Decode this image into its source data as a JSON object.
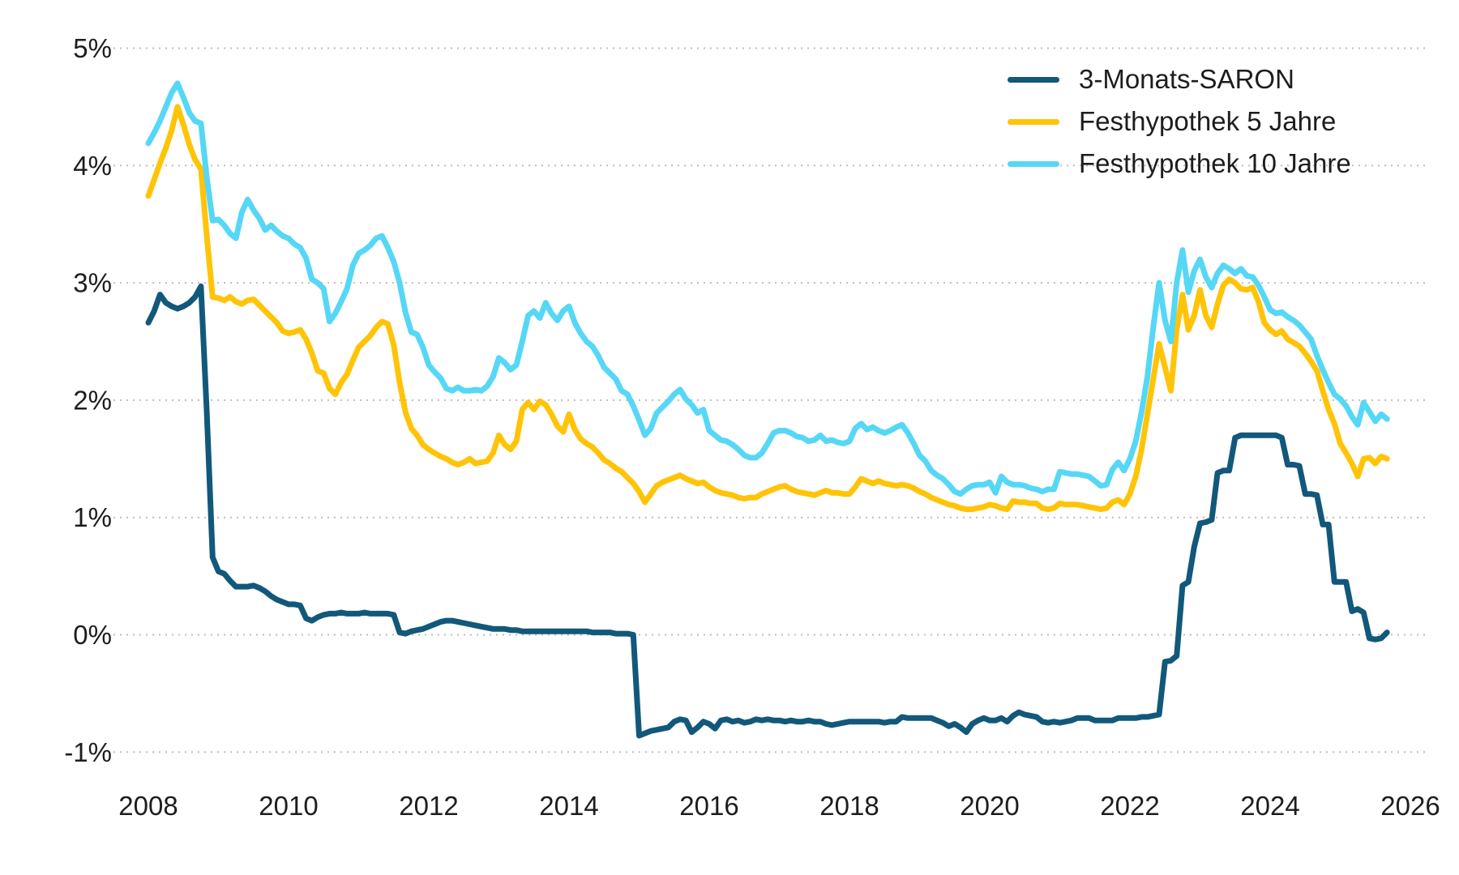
{
  "chart_data": {
    "type": "line",
    "title": "",
    "x_axis": {
      "tick_labels": [
        "2008",
        "2010",
        "2012",
        "2014",
        "2016",
        "2018",
        "2020",
        "2022",
        "2024",
        "2026"
      ],
      "tick_years": [
        2008,
        2010,
        2012,
        2014,
        2016,
        2018,
        2020,
        2022,
        2024,
        2026
      ],
      "range": [
        2008,
        2026.3
      ]
    },
    "y_axis": {
      "tick_labels": [
        "5%",
        "4%",
        "3%",
        "2%",
        "1%",
        "0%",
        "-1%"
      ],
      "tick_values": [
        5,
        4,
        3,
        2,
        1,
        0,
        -1
      ],
      "unit": "%",
      "range": [
        -1.4,
        5.3
      ],
      "gridlines": "dotted-horizontal"
    },
    "legend_position": "top-right",
    "x_start_year": 2008,
    "x_start_month": 1,
    "x_months_per_step": 1,
    "x_end_year": 2025,
    "x_end_month": 9,
    "series": [
      {
        "name": "3-Monats-SARON",
        "color": "#12587B",
        "values": [
          2.66,
          2.76,
          2.9,
          2.83,
          2.8,
          2.78,
          2.8,
          2.83,
          2.88,
          2.97,
          1.9,
          0.66,
          0.54,
          0.52,
          0.46,
          0.41,
          0.41,
          0.41,
          0.42,
          0.4,
          0.37,
          0.33,
          0.3,
          0.28,
          0.26,
          0.26,
          0.25,
          0.14,
          0.12,
          0.15,
          0.17,
          0.18,
          0.18,
          0.19,
          0.18,
          0.18,
          0.18,
          0.19,
          0.18,
          0.18,
          0.18,
          0.18,
          0.17,
          0.02,
          0.01,
          0.03,
          0.04,
          0.05,
          0.07,
          0.09,
          0.11,
          0.12,
          0.12,
          0.11,
          0.1,
          0.09,
          0.08,
          0.07,
          0.06,
          0.05,
          0.05,
          0.05,
          0.04,
          0.04,
          0.03,
          0.03,
          0.03,
          0.03,
          0.03,
          0.03,
          0.03,
          0.03,
          0.03,
          0.03,
          0.03,
          0.03,
          0.02,
          0.02,
          0.02,
          0.02,
          0.01,
          0.01,
          0.01,
          0.0,
          -0.86,
          -0.84,
          -0.82,
          -0.81,
          -0.8,
          -0.79,
          -0.74,
          -0.72,
          -0.73,
          -0.83,
          -0.79,
          -0.74,
          -0.76,
          -0.8,
          -0.73,
          -0.72,
          -0.74,
          -0.73,
          -0.75,
          -0.74,
          -0.72,
          -0.73,
          -0.72,
          -0.73,
          -0.73,
          -0.74,
          -0.73,
          -0.74,
          -0.74,
          -0.73,
          -0.74,
          -0.74,
          -0.76,
          -0.77,
          -0.76,
          -0.75,
          -0.74,
          -0.74,
          -0.74,
          -0.74,
          -0.74,
          -0.74,
          -0.75,
          -0.74,
          -0.74,
          -0.7,
          -0.71,
          -0.71,
          -0.71,
          -0.71,
          -0.71,
          -0.73,
          -0.75,
          -0.78,
          -0.76,
          -0.79,
          -0.83,
          -0.76,
          -0.73,
          -0.71,
          -0.73,
          -0.73,
          -0.71,
          -0.74,
          -0.69,
          -0.66,
          -0.68,
          -0.69,
          -0.7,
          -0.74,
          -0.75,
          -0.74,
          -0.75,
          -0.74,
          -0.73,
          -0.71,
          -0.71,
          -0.71,
          -0.73,
          -0.73,
          -0.73,
          -0.73,
          -0.71,
          -0.71,
          -0.71,
          -0.71,
          -0.7,
          -0.7,
          -0.69,
          -0.68,
          -0.23,
          -0.22,
          -0.18,
          0.42,
          0.45,
          0.75,
          0.95,
          0.96,
          0.98,
          1.38,
          1.4,
          1.4,
          1.68,
          1.7,
          1.7,
          1.7,
          1.7,
          1.7,
          1.7,
          1.7,
          1.68,
          1.45,
          1.45,
          1.44,
          1.2,
          1.2,
          1.19,
          0.94,
          0.94,
          0.45,
          0.45,
          0.45,
          0.2,
          0.22,
          0.19,
          -0.03,
          -0.04,
          -0.03,
          0.02
        ]
      },
      {
        "name": "Festhypothek 5 Jahre",
        "color": "#FFC408",
        "values": [
          3.74,
          3.88,
          4.02,
          4.15,
          4.3,
          4.5,
          4.35,
          4.18,
          4.05,
          3.97,
          3.4,
          2.88,
          2.87,
          2.85,
          2.88,
          2.84,
          2.82,
          2.85,
          2.86,
          2.81,
          2.76,
          2.71,
          2.66,
          2.59,
          2.57,
          2.58,
          2.6,
          2.52,
          2.4,
          2.25,
          2.23,
          2.1,
          2.05,
          2.15,
          2.22,
          2.34,
          2.45,
          2.5,
          2.55,
          2.62,
          2.67,
          2.65,
          2.47,
          2.15,
          1.9,
          1.76,
          1.7,
          1.62,
          1.58,
          1.55,
          1.52,
          1.5,
          1.47,
          1.45,
          1.47,
          1.5,
          1.46,
          1.47,
          1.48,
          1.55,
          1.7,
          1.62,
          1.58,
          1.65,
          1.92,
          1.98,
          1.92,
          1.99,
          1.96,
          1.88,
          1.78,
          1.73,
          1.88,
          1.75,
          1.67,
          1.63,
          1.6,
          1.55,
          1.49,
          1.46,
          1.42,
          1.39,
          1.34,
          1.29,
          1.22,
          1.13,
          1.2,
          1.27,
          1.3,
          1.32,
          1.34,
          1.36,
          1.33,
          1.31,
          1.29,
          1.3,
          1.26,
          1.23,
          1.21,
          1.2,
          1.19,
          1.17,
          1.16,
          1.17,
          1.17,
          1.2,
          1.22,
          1.24,
          1.26,
          1.27,
          1.24,
          1.22,
          1.21,
          1.2,
          1.19,
          1.21,
          1.23,
          1.21,
          1.21,
          1.2,
          1.2,
          1.26,
          1.33,
          1.31,
          1.29,
          1.31,
          1.29,
          1.28,
          1.27,
          1.28,
          1.27,
          1.25,
          1.22,
          1.2,
          1.17,
          1.15,
          1.13,
          1.11,
          1.1,
          1.08,
          1.07,
          1.07,
          1.08,
          1.09,
          1.11,
          1.1,
          1.08,
          1.07,
          1.14,
          1.13,
          1.13,
          1.12,
          1.12,
          1.08,
          1.07,
          1.08,
          1.12,
          1.11,
          1.11,
          1.11,
          1.1,
          1.09,
          1.08,
          1.07,
          1.08,
          1.13,
          1.15,
          1.11,
          1.2,
          1.35,
          1.58,
          1.88,
          2.18,
          2.48,
          2.28,
          2.08,
          2.6,
          2.9,
          2.6,
          2.72,
          2.94,
          2.72,
          2.62,
          2.82,
          2.98,
          3.03,
          3.0,
          2.95,
          2.94,
          2.96,
          2.84,
          2.66,
          2.6,
          2.56,
          2.59,
          2.52,
          2.49,
          2.46,
          2.4,
          2.33,
          2.25,
          2.08,
          1.92,
          1.8,
          1.63,
          1.55,
          1.46,
          1.35,
          1.5,
          1.51,
          1.46,
          1.52,
          1.5
        ]
      },
      {
        "name": "Festhypothek 10 Jahre",
        "color": "#56D7F6",
        "values": [
          4.19,
          4.28,
          4.38,
          4.5,
          4.62,
          4.7,
          4.58,
          4.45,
          4.38,
          4.36,
          3.9,
          3.53,
          3.54,
          3.49,
          3.42,
          3.38,
          3.6,
          3.71,
          3.62,
          3.55,
          3.45,
          3.49,
          3.44,
          3.4,
          3.38,
          3.33,
          3.3,
          3.21,
          3.03,
          3.0,
          2.95,
          2.67,
          2.74,
          2.84,
          2.95,
          3.15,
          3.25,
          3.28,
          3.32,
          3.38,
          3.4,
          3.3,
          3.18,
          3.0,
          2.75,
          2.58,
          2.56,
          2.45,
          2.3,
          2.24,
          2.19,
          2.1,
          2.08,
          2.11,
          2.08,
          2.08,
          2.09,
          2.08,
          2.12,
          2.2,
          2.36,
          2.32,
          2.26,
          2.3,
          2.5,
          2.72,
          2.76,
          2.7,
          2.83,
          2.74,
          2.68,
          2.76,
          2.8,
          2.66,
          2.57,
          2.5,
          2.46,
          2.38,
          2.28,
          2.23,
          2.18,
          2.08,
          2.05,
          1.95,
          1.83,
          1.7,
          1.76,
          1.89,
          1.94,
          1.99,
          2.05,
          2.09,
          2.01,
          1.96,
          1.89,
          1.92,
          1.74,
          1.7,
          1.66,
          1.65,
          1.62,
          1.58,
          1.53,
          1.51,
          1.51,
          1.55,
          1.63,
          1.72,
          1.74,
          1.74,
          1.72,
          1.69,
          1.68,
          1.65,
          1.66,
          1.7,
          1.65,
          1.66,
          1.64,
          1.63,
          1.65,
          1.76,
          1.8,
          1.75,
          1.77,
          1.74,
          1.72,
          1.74,
          1.77,
          1.79,
          1.72,
          1.63,
          1.53,
          1.48,
          1.4,
          1.36,
          1.33,
          1.28,
          1.22,
          1.2,
          1.24,
          1.27,
          1.28,
          1.28,
          1.3,
          1.21,
          1.35,
          1.3,
          1.28,
          1.28,
          1.27,
          1.25,
          1.24,
          1.22,
          1.24,
          1.24,
          1.39,
          1.38,
          1.37,
          1.37,
          1.36,
          1.35,
          1.31,
          1.27,
          1.28,
          1.41,
          1.47,
          1.4,
          1.5,
          1.65,
          1.9,
          2.2,
          2.62,
          3.0,
          2.68,
          2.5,
          3.0,
          3.28,
          2.92,
          3.1,
          3.2,
          3.05,
          2.96,
          3.08,
          3.15,
          3.12,
          3.08,
          3.12,
          3.06,
          3.05,
          2.98,
          2.88,
          2.77,
          2.74,
          2.75,
          2.71,
          2.68,
          2.64,
          2.58,
          2.52,
          2.38,
          2.26,
          2.15,
          2.05,
          2.01,
          1.95,
          1.86,
          1.79,
          1.98,
          1.9,
          1.82,
          1.88,
          1.84
        ]
      }
    ],
    "style": {
      "grid_color": "#BDBDBD",
      "text_color": "#1D1D1F",
      "background": "#FFFFFF"
    }
  }
}
